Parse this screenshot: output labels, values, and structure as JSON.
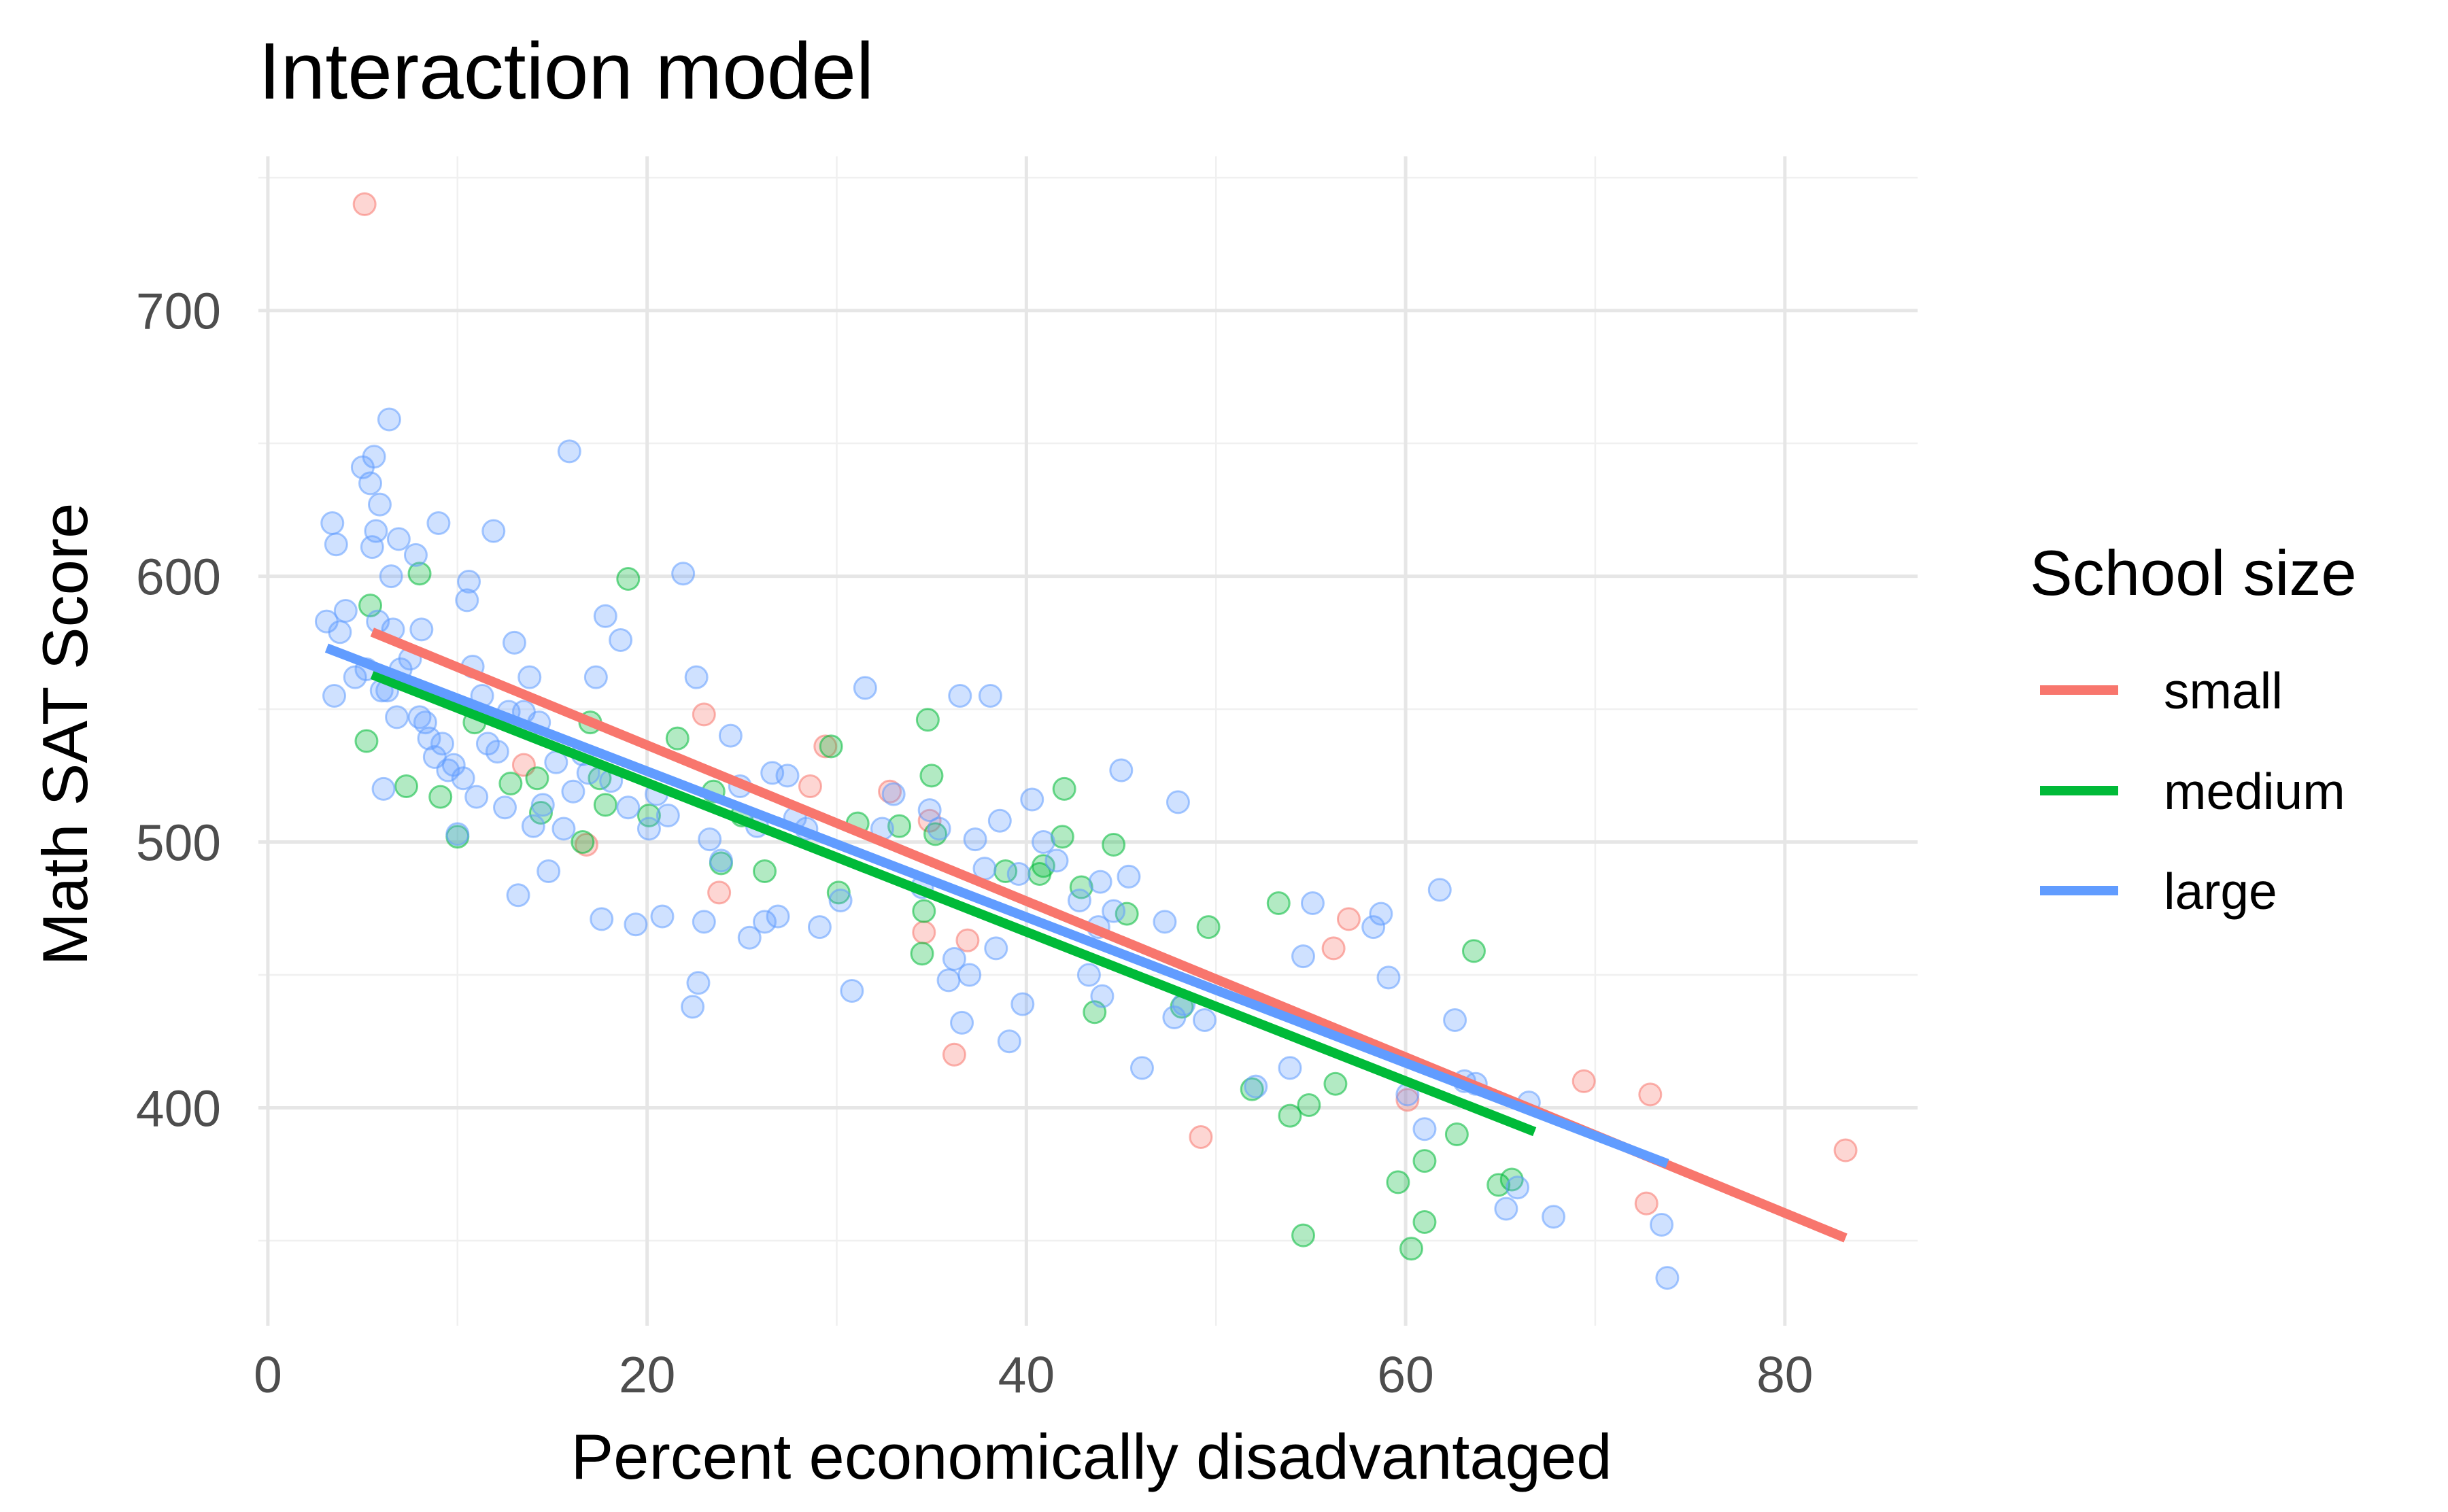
{
  "chart_data": {
    "type": "scatter",
    "title": "Interaction model",
    "xlabel": "Percent economically disadvantaged",
    "ylabel": "Math SAT Score",
    "xlim": [
      -0.5,
      87
    ],
    "ylim": [
      318,
      758
    ],
    "x_ticks": [
      0,
      20,
      40,
      60,
      80
    ],
    "y_ticks": [
      400,
      500,
      600,
      700
    ],
    "grid": true,
    "legend": {
      "title": "School size",
      "position": "right",
      "entries": [
        "small",
        "medium",
        "large"
      ]
    },
    "colors": {
      "small": "#F8766D",
      "medium": "#00BA38",
      "large": "#619CFF"
    },
    "point_opacity": 0.3,
    "series": [
      {
        "name": "small",
        "color": "#F8766D",
        "fit_line": {
          "x": [
            5.5,
            83.2
          ],
          "y": [
            579,
            351
          ]
        },
        "points": [
          [
            5.1,
            740
          ],
          [
            13.5,
            529
          ],
          [
            16.8,
            499
          ],
          [
            23.0,
            548
          ],
          [
            23.8,
            481
          ],
          [
            28.6,
            521
          ],
          [
            29.4,
            536
          ],
          [
            32.8,
            519
          ],
          [
            34.6,
            466
          ],
          [
            34.9,
            508
          ],
          [
            36.2,
            420
          ],
          [
            36.9,
            463
          ],
          [
            49.2,
            389
          ],
          [
            56.2,
            460
          ],
          [
            57.0,
            471
          ],
          [
            60.1,
            403
          ],
          [
            69.4,
            410
          ],
          [
            72.7,
            364
          ],
          [
            72.9,
            405
          ],
          [
            83.2,
            384
          ]
        ]
      },
      {
        "name": "medium",
        "color": "#00BA38",
        "fit_line": {
          "x": [
            5.5,
            66.8
          ],
          "y": [
            563,
            391
          ]
        },
        "points": [
          [
            5.2,
            538
          ],
          [
            5.4,
            589
          ],
          [
            7.3,
            521
          ],
          [
            8.0,
            601
          ],
          [
            9.1,
            517
          ],
          [
            10.0,
            502
          ],
          [
            10.9,
            545
          ],
          [
            12.8,
            522
          ],
          [
            14.2,
            524
          ],
          [
            14.4,
            511
          ],
          [
            16.6,
            500
          ],
          [
            17.0,
            545
          ],
          [
            17.5,
            524
          ],
          [
            17.8,
            514
          ],
          [
            19.0,
            599
          ],
          [
            20.1,
            510
          ],
          [
            21.6,
            539
          ],
          [
            23.5,
            519
          ],
          [
            23.9,
            492
          ],
          [
            25.0,
            510
          ],
          [
            26.2,
            489
          ],
          [
            29.7,
            536
          ],
          [
            30.1,
            481
          ],
          [
            31.1,
            507
          ],
          [
            33.3,
            506
          ],
          [
            34.5,
            458
          ],
          [
            34.6,
            474
          ],
          [
            34.8,
            546
          ],
          [
            35.0,
            525
          ],
          [
            35.2,
            503
          ],
          [
            38.9,
            489
          ],
          [
            40.7,
            488
          ],
          [
            40.9,
            491
          ],
          [
            41.9,
            502
          ],
          [
            42.0,
            520
          ],
          [
            42.9,
            483
          ],
          [
            43.6,
            436
          ],
          [
            44.6,
            499
          ],
          [
            45.3,
            473
          ],
          [
            48.2,
            438
          ],
          [
            49.6,
            468
          ],
          [
            51.9,
            407
          ],
          [
            53.3,
            477
          ],
          [
            53.9,
            397
          ],
          [
            54.6,
            352
          ],
          [
            54.9,
            401
          ],
          [
            56.3,
            409
          ],
          [
            59.6,
            372
          ],
          [
            60.3,
            347
          ],
          [
            61.0,
            357
          ],
          [
            61.0,
            380
          ],
          [
            62.7,
            390
          ],
          [
            63.6,
            459
          ],
          [
            64.9,
            371
          ],
          [
            65.6,
            373
          ]
        ]
      },
      {
        "name": "large",
        "color": "#619CFF",
        "fit_line": {
          "x": [
            3.1,
            73.8
          ],
          "y": [
            573,
            379
          ]
        },
        "points": [
          [
            3.1,
            583
          ],
          [
            3.4,
            620
          ],
          [
            3.5,
            555
          ],
          [
            3.6,
            612
          ],
          [
            3.8,
            579
          ],
          [
            4.1,
            587
          ],
          [
            4.6,
            562
          ],
          [
            5.0,
            641
          ],
          [
            5.2,
            565
          ],
          [
            5.4,
            635
          ],
          [
            5.5,
            611
          ],
          [
            5.6,
            645
          ],
          [
            5.7,
            617
          ],
          [
            5.8,
            583
          ],
          [
            5.9,
            627
          ],
          [
            6.0,
            557
          ],
          [
            6.1,
            520
          ],
          [
            6.3,
            557
          ],
          [
            6.4,
            659
          ],
          [
            6.5,
            600
          ],
          [
            6.6,
            580
          ],
          [
            6.8,
            547
          ],
          [
            6.9,
            614
          ],
          [
            7.0,
            565
          ],
          [
            7.5,
            569
          ],
          [
            7.8,
            608
          ],
          [
            8.0,
            547
          ],
          [
            8.1,
            580
          ],
          [
            8.3,
            545
          ],
          [
            8.5,
            539
          ],
          [
            8.8,
            532
          ],
          [
            9.0,
            620
          ],
          [
            9.2,
            537
          ],
          [
            9.5,
            527
          ],
          [
            9.8,
            529
          ],
          [
            10.0,
            503
          ],
          [
            10.3,
            524
          ],
          [
            10.5,
            591
          ],
          [
            10.6,
            598
          ],
          [
            10.8,
            566
          ],
          [
            11.0,
            517
          ],
          [
            11.3,
            555
          ],
          [
            11.6,
            537
          ],
          [
            11.9,
            617
          ],
          [
            12.1,
            534
          ],
          [
            12.5,
            513
          ],
          [
            12.7,
            549
          ],
          [
            13.0,
            575
          ],
          [
            13.2,
            480
          ],
          [
            13.5,
            549
          ],
          [
            13.8,
            562
          ],
          [
            14.0,
            506
          ],
          [
            14.3,
            545
          ],
          [
            14.5,
            514
          ],
          [
            14.8,
            489
          ],
          [
            15.2,
            530
          ],
          [
            15.6,
            505
          ],
          [
            15.9,
            647
          ],
          [
            16.1,
            519
          ],
          [
            16.6,
            533
          ],
          [
            16.9,
            526
          ],
          [
            17.3,
            562
          ],
          [
            17.6,
            471
          ],
          [
            17.8,
            585
          ],
          [
            18.1,
            523
          ],
          [
            18.6,
            576
          ],
          [
            19.0,
            513
          ],
          [
            19.4,
            469
          ],
          [
            20.1,
            505
          ],
          [
            20.5,
            518
          ],
          [
            20.8,
            472
          ],
          [
            21.1,
            510
          ],
          [
            21.9,
            601
          ],
          [
            22.4,
            438
          ],
          [
            22.6,
            562
          ],
          [
            22.7,
            447
          ],
          [
            23.0,
            470
          ],
          [
            23.3,
            501
          ],
          [
            23.9,
            493
          ],
          [
            24.4,
            540
          ],
          [
            24.9,
            521
          ],
          [
            25.4,
            464
          ],
          [
            25.8,
            506
          ],
          [
            26.2,
            470
          ],
          [
            26.6,
            526
          ],
          [
            26.9,
            472
          ],
          [
            27.4,
            525
          ],
          [
            27.8,
            509
          ],
          [
            28.4,
            505
          ],
          [
            29.1,
            468
          ],
          [
            30.2,
            478
          ],
          [
            30.8,
            444
          ],
          [
            31.5,
            558
          ],
          [
            32.4,
            505
          ],
          [
            33.0,
            518
          ],
          [
            34.5,
            483
          ],
          [
            34.9,
            512
          ],
          [
            35.4,
            505
          ],
          [
            35.9,
            448
          ],
          [
            36.2,
            456
          ],
          [
            36.5,
            555
          ],
          [
            36.6,
            432
          ],
          [
            37.0,
            450
          ],
          [
            37.3,
            501
          ],
          [
            37.8,
            490
          ],
          [
            38.1,
            555
          ],
          [
            38.4,
            460
          ],
          [
            38.6,
            508
          ],
          [
            39.1,
            425
          ],
          [
            39.6,
            488
          ],
          [
            39.8,
            439
          ],
          [
            40.3,
            516
          ],
          [
            40.9,
            500
          ],
          [
            41.6,
            493
          ],
          [
            42.8,
            478
          ],
          [
            43.3,
            450
          ],
          [
            43.8,
            468
          ],
          [
            43.9,
            485
          ],
          [
            44.0,
            442
          ],
          [
            44.6,
            474
          ],
          [
            45.0,
            527
          ],
          [
            45.4,
            487
          ],
          [
            46.1,
            415
          ],
          [
            47.3,
            470
          ],
          [
            47.8,
            434
          ],
          [
            48.0,
            515
          ],
          [
            48.3,
            439
          ],
          [
            49.4,
            433
          ],
          [
            52.1,
            408
          ],
          [
            53.9,
            415
          ],
          [
            54.6,
            457
          ],
          [
            55.1,
            477
          ],
          [
            58.3,
            468
          ],
          [
            58.7,
            473
          ],
          [
            59.1,
            449
          ],
          [
            60.1,
            405
          ],
          [
            61.0,
            392
          ],
          [
            61.8,
            482
          ],
          [
            62.6,
            433
          ],
          [
            63.1,
            410
          ],
          [
            63.7,
            409
          ],
          [
            65.3,
            362
          ],
          [
            65.9,
            370
          ],
          [
            66.5,
            402
          ],
          [
            67.8,
            359
          ],
          [
            73.5,
            356
          ],
          [
            73.8,
            336
          ]
        ]
      }
    ]
  }
}
